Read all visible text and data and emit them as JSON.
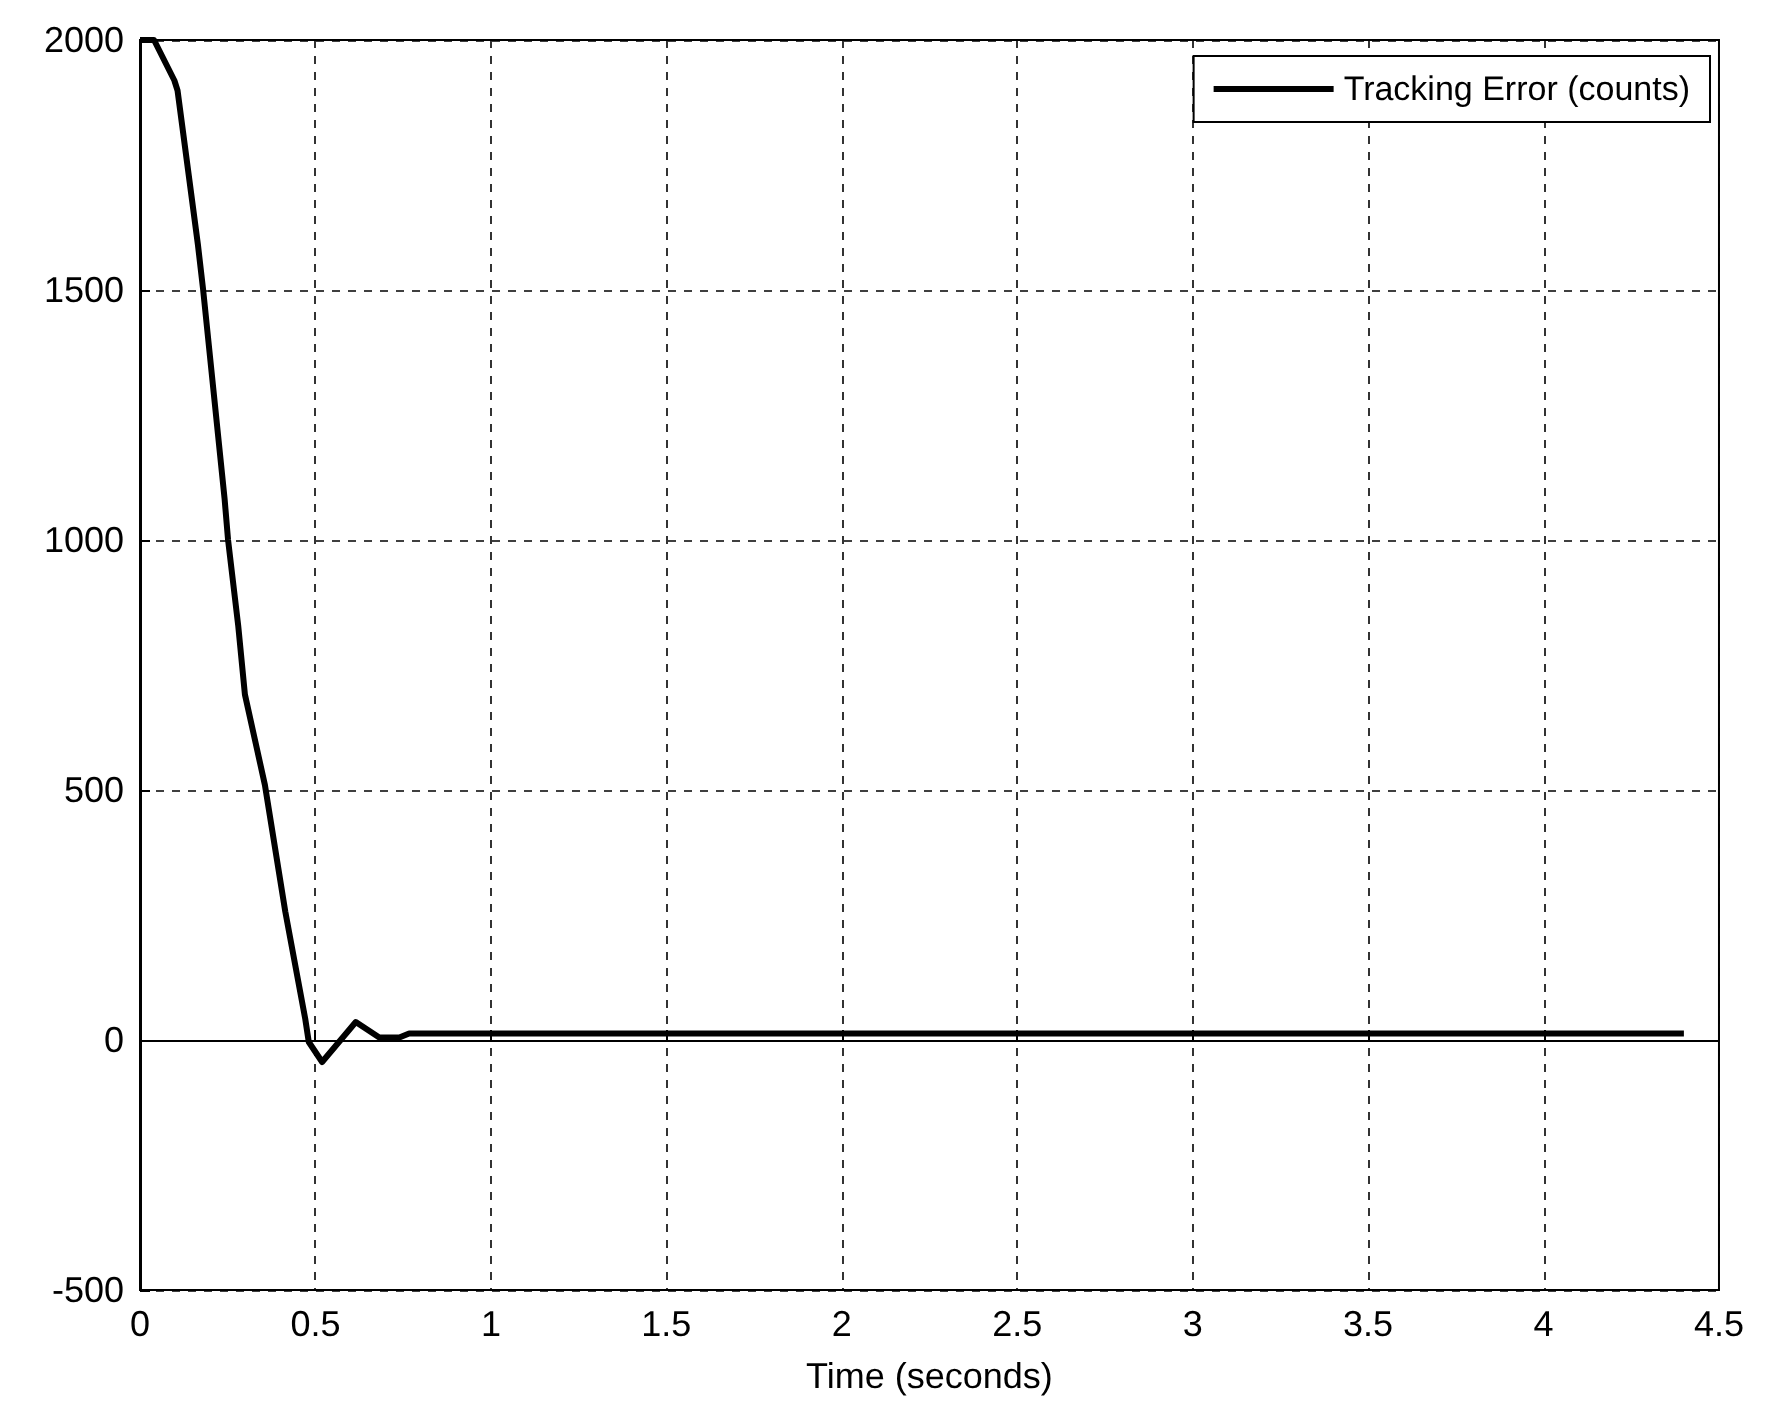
{
  "chart_data": {
    "type": "line",
    "xlabel": "Time (seconds)",
    "x": [
      0,
      0.04,
      0.098,
      0.107,
      0.165,
      0.18,
      0.241,
      0.251,
      0.28,
      0.299,
      0.356,
      0.414,
      0.471,
      0.481,
      0.519,
      0.615,
      0.682,
      0.739,
      0.767,
      4.4
    ],
    "series": [
      {
        "name": "Tracking Error (counts)",
        "color": "#000000",
        "values": [
          2000,
          2000,
          1919,
          1899,
          1591,
          1500,
          1083,
          1000,
          828,
          691,
          510,
          257,
          42,
          -4,
          -44,
          36,
          5,
          5,
          13,
          13
        ]
      }
    ],
    "xlim": [
      0,
      4.5
    ],
    "xticks": [
      0,
      0.5,
      1,
      1.5,
      2,
      2.5,
      3,
      3.5,
      4,
      4.5
    ],
    "ylim": [
      -500,
      2000
    ],
    "yticks": [
      -500,
      0,
      500,
      1000,
      1500,
      2000
    ],
    "grid": true,
    "legend": "top right",
    "marker": "none",
    "line_style": "solid"
  }
}
